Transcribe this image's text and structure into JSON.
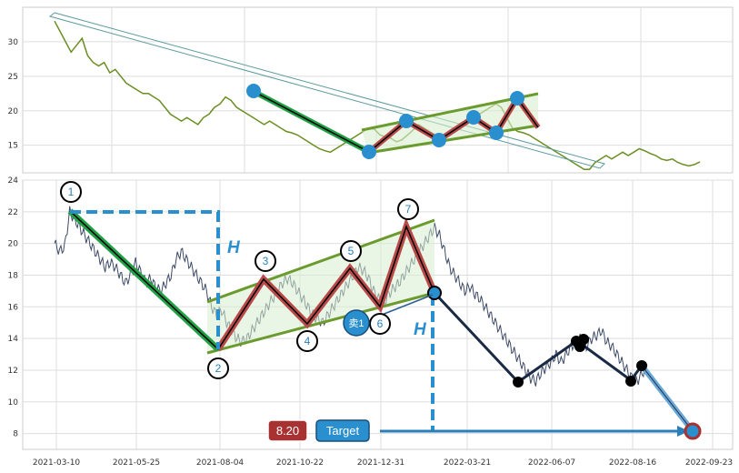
{
  "chart_data": [
    {
      "type": "line",
      "panel": "overview",
      "ylim": [
        11,
        35
      ],
      "yticks": [
        15,
        20,
        25,
        30
      ],
      "grid": true,
      "series": [
        {
          "color": "#6b8e23",
          "values": [
            [
              0,
              33
            ],
            [
              5,
              31.5
            ],
            [
              10,
              30
            ],
            [
              15,
              28.5
            ],
            [
              20,
              29.5
            ],
            [
              25,
              30.5
            ],
            [
              30,
              28
            ],
            [
              35,
              27
            ],
            [
              40,
              26.5
            ],
            [
              45,
              27
            ],
            [
              50,
              25.5
            ],
            [
              55,
              26
            ],
            [
              60,
              25
            ],
            [
              65,
              24
            ],
            [
              70,
              23.5
            ],
            [
              75,
              23
            ],
            [
              80,
              22.5
            ],
            [
              85,
              22.5
            ],
            [
              90,
              22
            ],
            [
              95,
              21.5
            ],
            [
              100,
              20.5
            ],
            [
              105,
              19.5
            ],
            [
              110,
              19
            ],
            [
              115,
              18.5
            ],
            [
              120,
              19
            ],
            [
              125,
              18.5
            ],
            [
              130,
              18
            ],
            [
              135,
              19
            ],
            [
              140,
              19.5
            ],
            [
              145,
              20.5
            ],
            [
              150,
              21
            ],
            [
              155,
              22
            ],
            [
              160,
              21.5
            ],
            [
              165,
              20.5
            ],
            [
              170,
              20
            ],
            [
              175,
              19.5
            ],
            [
              180,
              19
            ],
            [
              185,
              18.5
            ],
            [
              190,
              18
            ],
            [
              195,
              18.5
            ],
            [
              200,
              18
            ],
            [
              205,
              17.5
            ],
            [
              210,
              17
            ],
            [
              215,
              16.8
            ],
            [
              220,
              16.5
            ],
            [
              225,
              16
            ],
            [
              230,
              15.5
            ],
            [
              235,
              15
            ],
            [
              240,
              14.5
            ],
            [
              245,
              14.2
            ],
            [
              250,
              14
            ],
            [
              255,
              14.5
            ],
            [
              260,
              15
            ],
            [
              265,
              15.5
            ],
            [
              270,
              16
            ],
            [
              275,
              16.5
            ],
            [
              280,
              17
            ],
            [
              285,
              17.5
            ],
            [
              290,
              17.3
            ],
            [
              295,
              16.5
            ],
            [
              300,
              16.2
            ],
            [
              305,
              16
            ],
            [
              310,
              15.5
            ],
            [
              315,
              15.8
            ],
            [
              320,
              16.5
            ],
            [
              325,
              17.2
            ],
            [
              330,
              18
            ],
            [
              335,
              17.5
            ],
            [
              340,
              17
            ],
            [
              345,
              16.5
            ],
            [
              350,
              16
            ],
            [
              355,
              16.3
            ],
            [
              360,
              17
            ],
            [
              365,
              17.5
            ],
            [
              370,
              18
            ],
            [
              375,
              18.5
            ],
            [
              380,
              19
            ],
            [
              385,
              19.5
            ],
            [
              390,
              20
            ],
            [
              395,
              20.5
            ],
            [
              400,
              21
            ],
            [
              405,
              20.5
            ],
            [
              410,
              19
            ],
            [
              415,
              17.5
            ],
            [
              420,
              17
            ],
            [
              425,
              16.8
            ],
            [
              430,
              16.5
            ],
            [
              435,
              16
            ],
            [
              440,
              15.5
            ],
            [
              445,
              15
            ],
            [
              450,
              14.5
            ],
            [
              455,
              14
            ],
            [
              460,
              13.5
            ],
            [
              465,
              13
            ],
            [
              470,
              12.5
            ],
            [
              475,
              12
            ],
            [
              480,
              11.5
            ],
            [
              485,
              11.5
            ],
            [
              490,
              12.5
            ],
            [
              495,
              13
            ],
            [
              500,
              13.5
            ],
            [
              505,
              13
            ],
            [
              510,
              13.5
            ],
            [
              515,
              14
            ],
            [
              520,
              13.5
            ],
            [
              525,
              14
            ],
            [
              530,
              14.5
            ],
            [
              535,
              14.2
            ],
            [
              540,
              13.8
            ],
            [
              545,
              13.5
            ],
            [
              550,
              13
            ],
            [
              555,
              12.8
            ],
            [
              560,
              13
            ],
            [
              565,
              12.5
            ],
            [
              570,
              12.2
            ],
            [
              575,
              12
            ],
            [
              580,
              12.2
            ],
            [
              585,
              12.6
            ]
          ]
        }
      ]
    },
    {
      "type": "line",
      "panel": "main",
      "ylim": [
        7,
        24
      ],
      "yticks": [
        8,
        10,
        12,
        14,
        16,
        18,
        20,
        22,
        24
      ],
      "xticks": [
        "2021-03-10",
        "2021-05-25",
        "2021-08-04",
        "2021-10-22",
        "2021-12-31",
        "2022-03-21",
        "2022-06-07",
        "2022-08-16",
        "2022-09-23"
      ],
      "grid": true,
      "series": [
        {
          "color": "#3d4a66",
          "values": [
            [
              0,
              20
            ],
            [
              4,
              19.5
            ],
            [
              8,
              19.8
            ],
            [
              12,
              22
            ],
            [
              16,
              21.5
            ],
            [
              20,
              21
            ],
            [
              24,
              20.5
            ],
            [
              28,
              20
            ],
            [
              32,
              19.5
            ],
            [
              36,
              19
            ],
            [
              40,
              18.5
            ],
            [
              44,
              18.8
            ],
            [
              48,
              18.5
            ],
            [
              52,
              18
            ],
            [
              56,
              17.5
            ],
            [
              60,
              18
            ],
            [
              64,
              18.8
            ],
            [
              68,
              18.2
            ],
            [
              72,
              17.5
            ],
            [
              76,
              17.8
            ],
            [
              80,
              17.2
            ],
            [
              84,
              17
            ],
            [
              88,
              17.5
            ],
            [
              92,
              18
            ],
            [
              96,
              19
            ],
            [
              100,
              19.5
            ],
            [
              104,
              19
            ],
            [
              108,
              18.5
            ],
            [
              112,
              18
            ],
            [
              116,
              17.5
            ],
            [
              120,
              17
            ],
            [
              124,
              16
            ],
            [
              128,
              15.5
            ],
            [
              132,
              15.8
            ],
            [
              136,
              15
            ],
            [
              140,
              14.5
            ],
            [
              144,
              14
            ],
            [
              148,
              13.8
            ],
            [
              152,
              14
            ],
            [
              156,
              14.5
            ],
            [
              160,
              15
            ],
            [
              164,
              15.5
            ],
            [
              168,
              16
            ],
            [
              172,
              16.5
            ],
            [
              176,
              17
            ],
            [
              180,
              17.5
            ],
            [
              184,
              17.8
            ],
            [
              188,
              17.5
            ],
            [
              192,
              17
            ],
            [
              196,
              16.5
            ],
            [
              200,
              16
            ],
            [
              204,
              15.5
            ],
            [
              208,
              15.2
            ],
            [
              212,
              15
            ],
            [
              216,
              15.5
            ],
            [
              220,
              16
            ],
            [
              224,
              16.5
            ],
            [
              228,
              17
            ],
            [
              232,
              17.5
            ],
            [
              236,
              18
            ],
            [
              240,
              18.5
            ],
            [
              244,
              18.3
            ],
            [
              248,
              17.8
            ],
            [
              252,
              17
            ],
            [
              256,
              16.5
            ],
            [
              260,
              16.2
            ],
            [
              264,
              16.8
            ],
            [
              268,
              17.2
            ],
            [
              272,
              17.5
            ],
            [
              276,
              18
            ],
            [
              280,
              18.5
            ],
            [
              284,
              19
            ],
            [
              288,
              19.5
            ],
            [
              292,
              20
            ],
            [
              296,
              20.5
            ],
            [
              300,
              21
            ],
            [
              304,
              20.5
            ],
            [
              308,
              19.5
            ],
            [
              312,
              18.5
            ],
            [
              316,
              18
            ],
            [
              320,
              17.5
            ],
            [
              324,
              17
            ],
            [
              328,
              17.3
            ],
            [
              332,
              16.8
            ],
            [
              336,
              16.5
            ],
            [
              340,
              16
            ],
            [
              344,
              15.5
            ],
            [
              348,
              15
            ],
            [
              352,
              14.5
            ],
            [
              356,
              14
            ],
            [
              360,
              13.5
            ],
            [
              364,
              13
            ],
            [
              368,
              12.5
            ],
            [
              372,
              12
            ],
            [
              376,
              11.5
            ],
            [
              380,
              11.3
            ],
            [
              384,
              11.8
            ],
            [
              388,
              12.2
            ],
            [
              392,
              12.5
            ],
            [
              396,
              13
            ],
            [
              400,
              12.5
            ],
            [
              404,
              13
            ],
            [
              408,
              13.5
            ],
            [
              412,
              13.8
            ],
            [
              416,
              14
            ],
            [
              420,
              13.5
            ],
            [
              424,
              14
            ],
            [
              428,
              14.2
            ],
            [
              432,
              14.5
            ],
            [
              436,
              13.8
            ],
            [
              440,
              13.5
            ],
            [
              444,
              13
            ],
            [
              448,
              12.5
            ],
            [
              452,
              12
            ],
            [
              456,
              11.5
            ],
            [
              460,
              11.3
            ],
            [
              464,
              11.8
            ],
            [
              468,
              12.3
            ]
          ]
        }
      ]
    }
  ],
  "labels": {
    "price": "8.20",
    "target": "Target",
    "sell": "卖1",
    "h_upper": "H",
    "h_lower": "H",
    "p1": "1",
    "p2": "2",
    "p3": "3",
    "p4": "4",
    "p5": "5",
    "p6": "6",
    "p7": "7"
  },
  "colors": {
    "price_line_top": "#6b8e23",
    "price_line_main": "#3d4a66",
    "down_leg": "#22a046",
    "zigzag": "#c04040",
    "channel": "#6b9b2e",
    "projection": "#2a8fce",
    "price_badge": "#a83232",
    "target_badge": "#2a8fce"
  }
}
